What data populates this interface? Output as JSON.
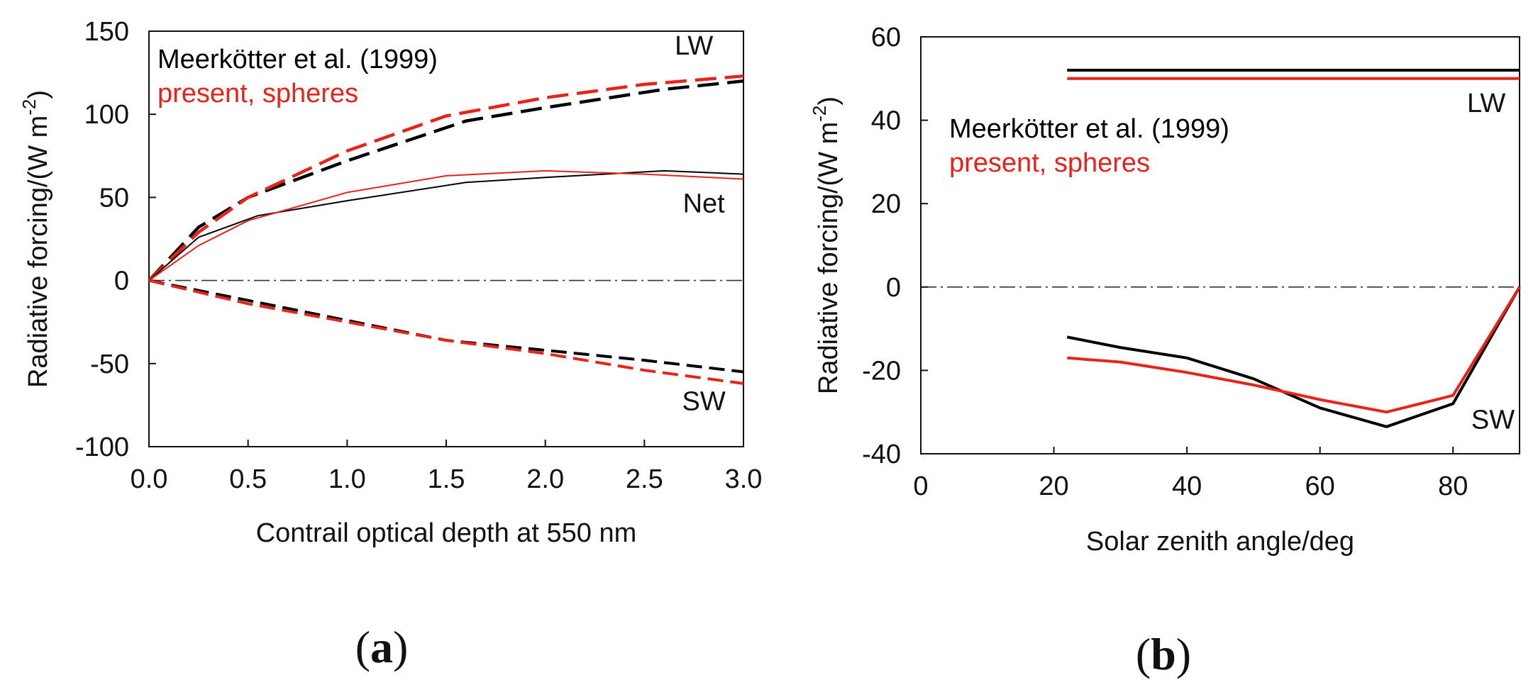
{
  "colors": {
    "black": "#000000",
    "red": "#e8231a",
    "axis": "#111111"
  },
  "chart_data": [
    {
      "type": "line",
      "panel_label": "a",
      "xlabel": "Contrail optical depth at 550 nm",
      "ylabel_main": "Radiative forcing/(W m",
      "ylabel_sup": "-2",
      "ylabel_close": ")",
      "xlim": [
        0,
        3
      ],
      "ylim": [
        -100,
        150
      ],
      "xticks": [
        0,
        0.5,
        1,
        1.5,
        2,
        2.5,
        3
      ],
      "xtick_labels": [
        "0.0",
        "0.5",
        "1.0",
        "1.5",
        "2.0",
        "2.5",
        "3.0"
      ],
      "yticks": [
        -100,
        -50,
        0,
        50,
        100,
        150
      ],
      "ytick_labels": [
        "-100",
        "-50",
        "0",
        "50",
        "100",
        "150"
      ],
      "legend": [
        {
          "label": "Meerkötter et al. (1999)",
          "color": "black"
        },
        {
          "label": "present, spheres",
          "color": "red"
        }
      ],
      "annotations": [
        {
          "text": "LW",
          "x": 2.75,
          "y": 136
        },
        {
          "text": "Net",
          "x": 2.8,
          "y": 41
        },
        {
          "text": "SW",
          "x": 2.8,
          "y": -78
        }
      ],
      "series": [
        {
          "name": "Meerkötter LW",
          "color": "black",
          "style": "dashed-thick",
          "x": [
            0,
            0.25,
            0.5,
            1.0,
            1.6,
            2.0,
            2.6,
            3.0
          ],
          "y": [
            0,
            32,
            50,
            72,
            96,
            104,
            115,
            120
          ]
        },
        {
          "name": "present LW",
          "color": "red",
          "style": "dashed-thick",
          "x": [
            0,
            0.25,
            0.5,
            1.0,
            1.5,
            2.0,
            2.5,
            3.0
          ],
          "y": [
            0,
            29,
            50,
            78,
            99,
            110,
            118,
            123
          ]
        },
        {
          "name": "Meerkötter Net",
          "color": "black",
          "style": "solid-thin",
          "x": [
            0,
            0.25,
            0.55,
            1.0,
            1.6,
            2.0,
            2.6,
            3.0
          ],
          "y": [
            0,
            26,
            39,
            48,
            59,
            62,
            66,
            64
          ]
        },
        {
          "name": "present Net",
          "color": "red",
          "style": "solid-thin",
          "x": [
            0,
            0.25,
            0.5,
            1.0,
            1.5,
            2.0,
            2.5,
            3.0
          ],
          "y": [
            0,
            21,
            36,
            53,
            63,
            66,
            64,
            61
          ]
        },
        {
          "name": "Meerkötter SW",
          "color": "black",
          "style": "dashed",
          "x": [
            0,
            0.5,
            1.0,
            1.5,
            2.0,
            2.5,
            3.0
          ],
          "y": [
            0,
            -12,
            -24,
            -36,
            -42,
            -48,
            -55
          ]
        },
        {
          "name": "present SW",
          "color": "red",
          "style": "dashed",
          "x": [
            0,
            0.5,
            1.0,
            1.5,
            2.0,
            2.5,
            3.0
          ],
          "y": [
            0,
            -14,
            -25,
            -36,
            -44,
            -54,
            -62
          ]
        }
      ]
    },
    {
      "type": "line",
      "panel_label": "b",
      "xlabel": "Solar zenith angle/deg",
      "ylabel_main": "Radiative forcing/(W m",
      "ylabel_sup": "-2",
      "ylabel_close": ")",
      "xlim": [
        0,
        90
      ],
      "ylim": [
        -40,
        60
      ],
      "xticks": [
        0,
        20,
        40,
        60,
        80
      ],
      "xtick_labels": [
        "0",
        "20",
        "40",
        "60",
        "80"
      ],
      "yticks": [
        -40,
        -20,
        0,
        20,
        40,
        60
      ],
      "ytick_labels": [
        "-40",
        "-20",
        "0",
        "20",
        "40",
        "60"
      ],
      "legend": [
        {
          "label": "Meerkötter et al. (1999)",
          "color": "black"
        },
        {
          "label": "present, spheres",
          "color": "red"
        }
      ],
      "annotations": [
        {
          "text": "LW",
          "x": 85,
          "y": 42
        },
        {
          "text": "SW",
          "x": 86,
          "y": -34
        }
      ],
      "series": [
        {
          "name": "Meerkötter LW",
          "color": "black",
          "style": "solid",
          "x": [
            22,
            90
          ],
          "y": [
            52,
            52
          ]
        },
        {
          "name": "present LW",
          "color": "red",
          "style": "solid",
          "x": [
            22,
            90
          ],
          "y": [
            50,
            50
          ]
        },
        {
          "name": "Meerkötter SW",
          "color": "black",
          "style": "solid",
          "x": [
            22,
            30,
            40,
            50,
            60,
            70,
            80,
            90
          ],
          "y": [
            -12,
            -14.5,
            -17,
            -22,
            -29,
            -33.5,
            -28,
            0
          ]
        },
        {
          "name": "present SW",
          "color": "red",
          "style": "solid",
          "x": [
            22,
            30,
            40,
            50,
            60,
            70,
            80,
            90
          ],
          "y": [
            -17,
            -18,
            -20.5,
            -23.5,
            -27,
            -30,
            -26,
            0
          ]
        }
      ]
    }
  ]
}
